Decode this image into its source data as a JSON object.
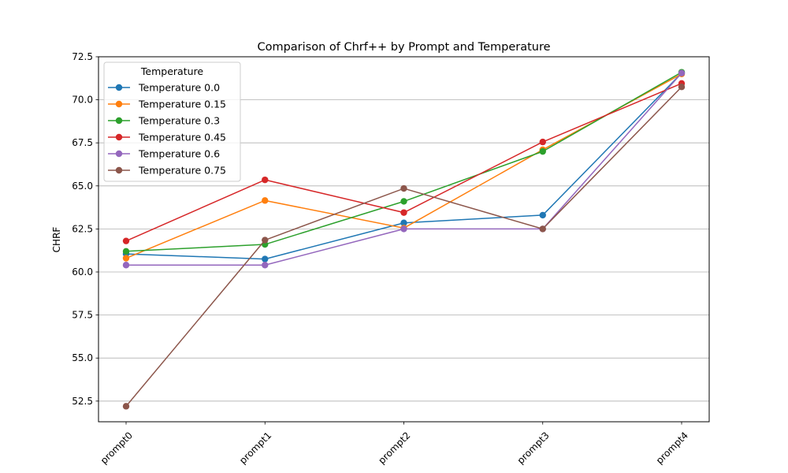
{
  "chart_data": {
    "type": "line",
    "title": "Comparison of Chrf++ by Prompt and Temperature",
    "xlabel": "",
    "ylabel": "CHRF",
    "categories": [
      "prompt0",
      "prompt1",
      "prompt2",
      "prompt3",
      "prompt4"
    ],
    "ylim": [
      51.3,
      72.5
    ],
    "yticks": [
      52.5,
      55.0,
      57.5,
      60.0,
      62.5,
      65.0,
      67.5,
      70.0,
      72.5
    ],
    "grid": "horizontal",
    "legend": {
      "title": "Temperature",
      "placement": "top-left"
    },
    "series": [
      {
        "name": "Temperature 0.0",
        "color": "#1f77b4",
        "values": [
          61.05,
          60.75,
          62.85,
          63.3,
          71.55
        ]
      },
      {
        "name": "Temperature 0.15",
        "color": "#ff7f0e",
        "values": [
          60.8,
          64.15,
          62.55,
          67.1,
          71.5
        ]
      },
      {
        "name": "Temperature 0.3",
        "color": "#2ca02c",
        "values": [
          61.2,
          61.6,
          64.1,
          67.0,
          71.6
        ]
      },
      {
        "name": "Temperature 0.45",
        "color": "#d62728",
        "values": [
          61.8,
          65.35,
          63.45,
          67.55,
          70.95
        ]
      },
      {
        "name": "Temperature 0.6",
        "color": "#9467bd",
        "values": [
          60.4,
          60.4,
          62.5,
          62.5,
          71.55
        ]
      },
      {
        "name": "Temperature 0.75",
        "color": "#8c564b",
        "values": [
          52.2,
          61.85,
          64.85,
          62.5,
          70.75
        ]
      }
    ]
  }
}
